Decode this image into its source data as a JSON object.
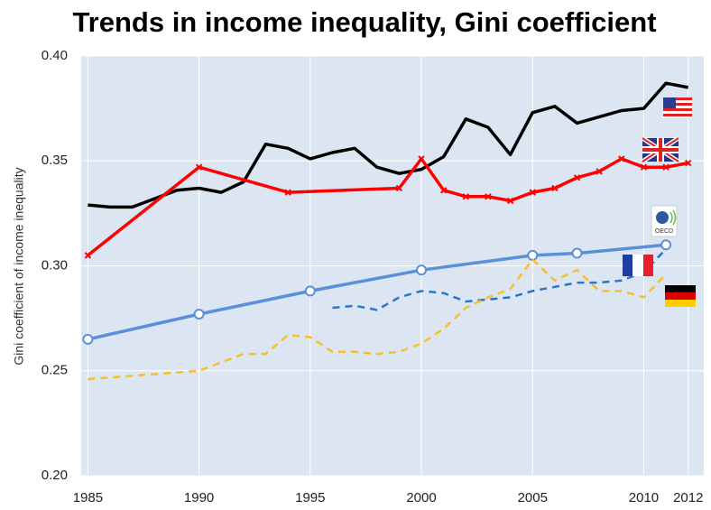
{
  "chart_data": {
    "type": "line",
    "title": "Trends in income inequality, Gini coefficient",
    "y_label": "Gini coefficient of income inequality",
    "xlim": [
      1984.7,
      2012.7
    ],
    "xticks": [
      1985,
      1990,
      1995,
      2000,
      2005,
      2010,
      2012
    ],
    "ylim": [
      0.2,
      0.4
    ],
    "yticks": [
      {
        "value": 0.2,
        "label": "0.20"
      },
      0.25,
      {
        "value": 0.3,
        "label": "0.30"
      },
      0.35,
      {
        "value": 0.4,
        "label": "0.40"
      }
    ],
    "grid": true,
    "background": "#dce6f2",
    "series": [
      {
        "color": "#000000",
        "marker": "none",
        "dashed": false,
        "x": [
          1985,
          1986,
          1987,
          1988,
          1989,
          1990,
          1991,
          1992,
          1993,
          1994,
          1995,
          1996,
          1997,
          1998,
          1999,
          2000,
          2001,
          2002,
          2003,
          2004,
          2005,
          2006,
          2007,
          2008,
          2009,
          2010,
          2011,
          2012
        ],
        "values": [
          0.329,
          0.328,
          0.328,
          0.332,
          0.336,
          0.337,
          0.335,
          0.34,
          0.358,
          0.356,
          0.351,
          0.354,
          0.356,
          0.347,
          0.344,
          0.346,
          0.352,
          0.37,
          0.366,
          0.353,
          0.373,
          0.376,
          0.368,
          0.371,
          0.374,
          0.375,
          0.387,
          0.385
        ]
      },
      {
        "color": "#ff0000",
        "marker": "x",
        "dashed": false,
        "x": [
          1985,
          1990,
          1994,
          1999,
          2000,
          2001,
          2002,
          2003,
          2004,
          2005,
          2006,
          2007,
          2008,
          2009,
          2010,
          2011,
          2012
        ],
        "values": [
          0.305,
          0.347,
          0.335,
          0.337,
          0.351,
          0.336,
          0.333,
          0.333,
          0.331,
          0.335,
          0.337,
          0.342,
          0.345,
          0.351,
          0.347,
          0.347,
          0.349
        ]
      },
      {
        "name": "OECD",
        "color": "#5b8fd8",
        "marker": "circle",
        "dashed": false,
        "x": [
          1985,
          1990,
          1995,
          2000,
          2005,
          2007,
          2011
        ],
        "values": [
          0.265,
          0.277,
          0.288,
          0.298,
          0.305,
          0.306,
          0.31
        ]
      },
      {
        "color": "#2e75c8",
        "marker": "none",
        "dashed": true,
        "x": [
          1996,
          1997,
          1998,
          1999,
          2000,
          2001,
          2002,
          2003,
          2004,
          2005,
          2006,
          2007,
          2008,
          2009,
          2010,
          2011
        ],
        "values": [
          0.28,
          0.281,
          0.279,
          0.285,
          0.288,
          0.287,
          0.283,
          0.284,
          0.285,
          0.288,
          0.29,
          0.292,
          0.292,
          0.293,
          0.297,
          0.308
        ]
      },
      {
        "color": "#f5c02a",
        "marker": "none",
        "dashed": true,
        "x": [
          1985,
          1990,
          1991,
          1992,
          1993,
          1994,
          1995,
          1996,
          1997,
          1998,
          1999,
          2000,
          2001,
          2002,
          2003,
          2004,
          2005,
          2006,
          2007,
          2008,
          2009,
          2010,
          2011
        ],
        "values": [
          0.246,
          0.25,
          0.254,
          0.258,
          0.258,
          0.267,
          0.266,
          0.259,
          0.259,
          0.258,
          0.259,
          0.263,
          0.27,
          0.28,
          0.285,
          0.289,
          0.303,
          0.293,
          0.298,
          0.288,
          0.288,
          0.285,
          0.296
        ]
      }
    ]
  }
}
